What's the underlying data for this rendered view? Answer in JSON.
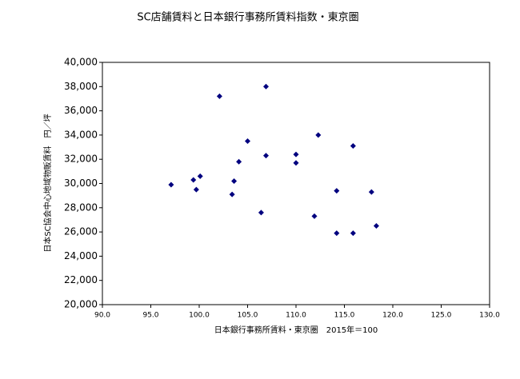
{
  "chart_data": {
    "type": "scatter",
    "title": "SC店舗賃料と日本銀行事務所賃料指数・東京圏",
    "x_label": "日本銀行事務所賃料・東京圏　2015年＝100",
    "y_label": "日本SC協会中心地域物販賃料　円／坪",
    "color": "#00007f",
    "series": [
      {
        "name": null,
        "color": "#00007f",
        "x": [
          97.1,
          99.4,
          99.7,
          100.1,
          102.1,
          103.6,
          103.4,
          104.1,
          105.0,
          106.4,
          106.9,
          106.9,
          110.0,
          110.0,
          112.3,
          111.9,
          114.2,
          114.2,
          115.9,
          115.9,
          117.8,
          118.3
        ],
        "values": [
          29900,
          30300,
          29500,
          30600,
          37200,
          30200,
          29100,
          31800,
          33500,
          27600,
          38000,
          32300,
          32400,
          31700,
          34000,
          27300,
          29400,
          25900,
          33100,
          25900,
          29300,
          26500
        ]
      }
    ],
    "xlim": [
      90,
      130
    ],
    "xticks": [
      {
        "value": 90,
        "label": "90.0"
      },
      {
        "value": 95,
        "label": "95.0"
      },
      {
        "value": 100,
        "label": "100.0"
      },
      {
        "value": 105,
        "label": "105.0"
      },
      {
        "value": 110,
        "label": "110.0"
      },
      {
        "value": 115,
        "label": "115.0"
      },
      {
        "value": 120,
        "label": "120.0"
      },
      {
        "value": 125,
        "label": "125.0"
      },
      {
        "value": 130,
        "label": "130.0"
      }
    ],
    "ylim": [
      20000,
      40000
    ],
    "yticks": [
      {
        "value": 20000,
        "label": "20,000"
      },
      {
        "value": 22000,
        "label": "22,000"
      },
      {
        "value": 24000,
        "label": "24,000"
      },
      {
        "value": 26000,
        "label": "26,000"
      },
      {
        "value": 28000,
        "label": "28,000"
      },
      {
        "value": 30000,
        "label": "30,000"
      },
      {
        "value": 32000,
        "label": "32,000"
      },
      {
        "value": 34000,
        "label": "34,000"
      },
      {
        "value": 36000,
        "label": "36,000"
      },
      {
        "value": 38000,
        "label": "38,000"
      },
      {
        "value": 40000,
        "label": "40,000"
      }
    ],
    "grid": false
  }
}
